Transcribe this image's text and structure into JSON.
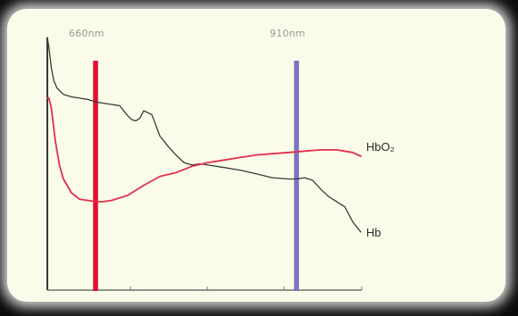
{
  "chart_data": {
    "type": "line",
    "wavelength_markers": [
      {
        "label": "660nm",
        "x": 660,
        "color": "#e0102f"
      },
      {
        "label": "910nm",
        "x": 910,
        "color": "#7a73bf"
      }
    ],
    "xlim": [
      600,
      1000
    ],
    "ylim": [
      0,
      100
    ],
    "grid": false,
    "series": [
      {
        "name": "Hb",
        "color": "#3a3a3a",
        "x": [
          600,
          602,
          605,
          608,
          612,
          620,
          630,
          640,
          650,
          660,
          670,
          680,
          690,
          700,
          705,
          710,
          715,
          720,
          730,
          740,
          750,
          760,
          770,
          780,
          790,
          800,
          820,
          840,
          860,
          880,
          900,
          910,
          920,
          930,
          940,
          950,
          960,
          970,
          980,
          990
        ],
        "y": [
          100,
          96,
          88,
          83,
          80,
          77.5,
          76.5,
          76,
          75.5,
          74.5,
          74,
          73.5,
          73,
          69,
          67.5,
          67,
          68,
          71,
          69.5,
          61,
          57,
          53.5,
          50.5,
          49.5,
          50,
          49.5,
          48.5,
          47.5,
          46,
          44.5,
          44,
          44,
          44.5,
          43.5,
          40,
          37,
          35,
          33,
          27,
          23
        ]
      },
      {
        "name": "HbO₂",
        "color": "#e0304a",
        "x": [
          600,
          602,
          605,
          610,
          615,
          620,
          630,
          640,
          650,
          660,
          670,
          680,
          690,
          700,
          720,
          740,
          760,
          780,
          800,
          820,
          840,
          860,
          880,
          900,
          920,
          940,
          960,
          980,
          990
        ],
        "y": [
          76,
          76,
          72,
          59,
          49.5,
          44,
          38.5,
          36,
          35.5,
          35,
          35,
          35.5,
          36.5,
          37.5,
          41.5,
          45,
          46.5,
          49,
          50.5,
          51.5,
          52.5,
          53.5,
          54,
          54.5,
          55,
          55.5,
          55.5,
          54.5,
          53
        ]
      }
    ]
  }
}
